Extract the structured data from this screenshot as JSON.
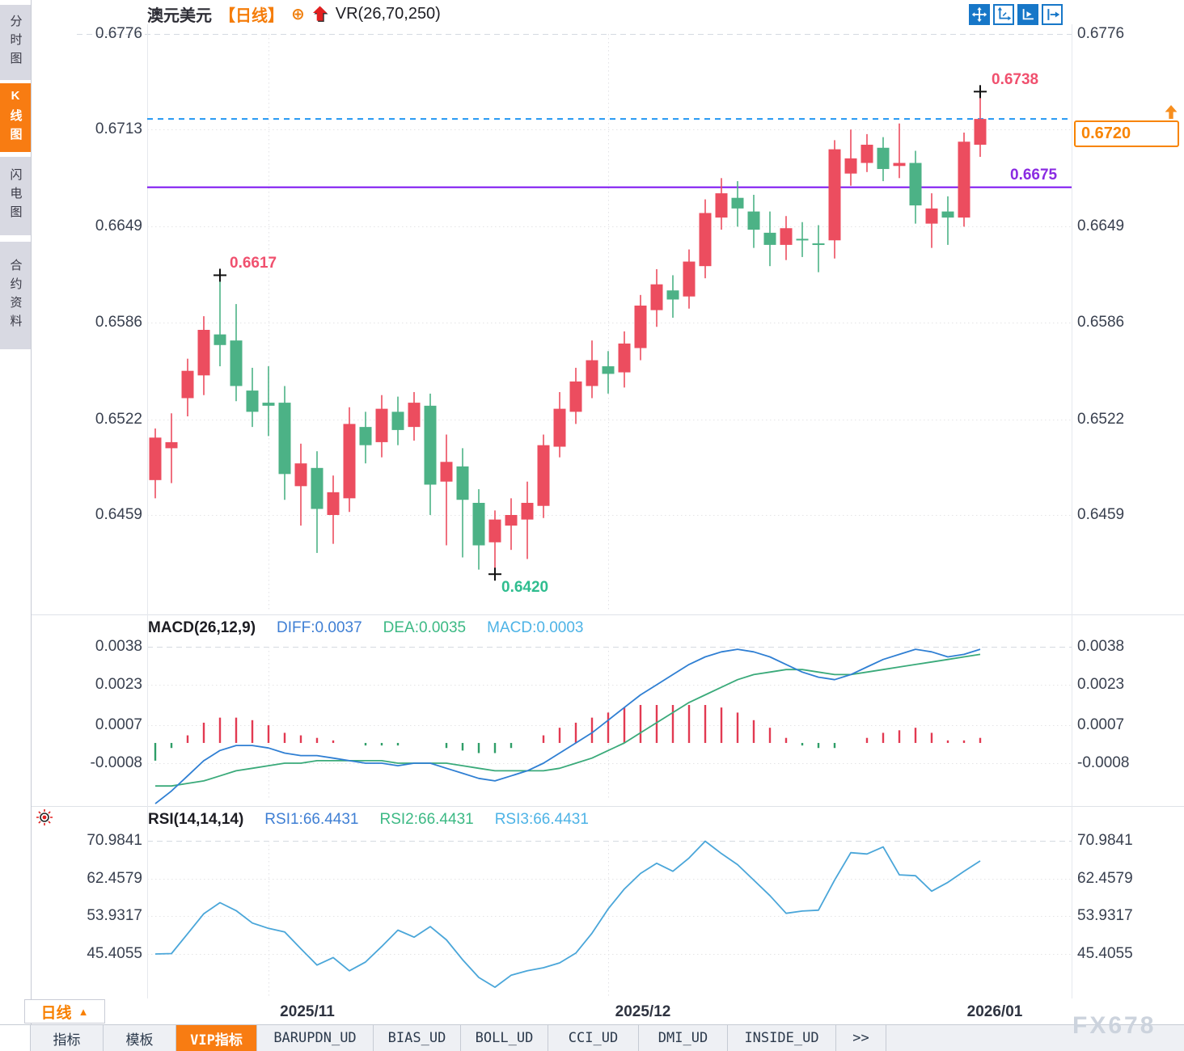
{
  "header": {
    "symbol": "澳元美元",
    "period_tag": "【日线】",
    "plus_icon": "⊕",
    "indicator": "VR(26,70,250)"
  },
  "sidebar": {
    "items": [
      {
        "label": "分时图",
        "active": false
      },
      {
        "label": "K线图",
        "active": true
      },
      {
        "label": "闪电图",
        "active": false
      },
      {
        "label": "合约资料",
        "active": false
      }
    ]
  },
  "toolbar": {
    "icons": [
      "pan",
      "scale-axes",
      "auto-scale",
      "shift-right"
    ]
  },
  "annotations": {
    "swing_high_1": "0.6617",
    "swing_low": "0.6420",
    "swing_high_2": "0.6738",
    "support_line": "0.6675",
    "current_price": "0.6720"
  },
  "colors": {
    "up_candle": "#ec4d5f",
    "down_candle": "#4cb286",
    "accent_orange": "#f87c12",
    "support_purple": "#7a10f0",
    "current_dashed_blue": "#2196f3",
    "diff_line": "#2f7fd3",
    "dea_line": "#3aaa7a",
    "rsi_line": "#4aa6d9",
    "hist_up": "#e23a52",
    "hist_down": "#2f9e68"
  },
  "x_axis": {
    "labels": [
      "2025/11",
      "2025/12",
      "2026/01"
    ]
  },
  "bottom": {
    "period_button": "日线",
    "period_arrow": "▲",
    "tabs": [
      {
        "label": "指标",
        "active": false
      },
      {
        "label": "模板",
        "active": false
      },
      {
        "label": "VIP指标",
        "active": true
      },
      {
        "label": "BARUPDN_UD",
        "active": false
      },
      {
        "label": "BIAS_UD",
        "active": false
      },
      {
        "label": "BOLL_UD",
        "active": false
      },
      {
        "label": "CCI_UD",
        "active": false
      },
      {
        "label": "DMI_UD",
        "active": false
      },
      {
        "label": "INSIDE_UD",
        "active": false
      },
      {
        "label": ">>",
        "active": false
      }
    ],
    "watermark": "FX678"
  },
  "chart_data": [
    {
      "type": "candlestick",
      "title": "澳元美元 日线",
      "y_ticks": [
        "0.6776",
        "0.6713",
        "0.6649",
        "0.6586",
        "0.6522",
        "0.6459"
      ],
      "ylim": [
        0.6459,
        0.6776
      ],
      "support_level": 0.6675,
      "current_level": 0.672,
      "markers": [
        {
          "index": 4,
          "value": 0.6617,
          "label": "0.6617"
        },
        {
          "index": 21,
          "value": 0.642,
          "label": "0.6420"
        },
        {
          "index": 51,
          "value": 0.6738,
          "label": "0.6738"
        }
      ],
      "candles_ohlc": [
        [
          0.6482,
          0.6516,
          0.647,
          0.651
        ],
        [
          0.6503,
          0.6526,
          0.648,
          0.6507
        ],
        [
          0.6536,
          0.6562,
          0.6524,
          0.6554
        ],
        [
          0.6551,
          0.659,
          0.6538,
          0.6581
        ],
        [
          0.6578,
          0.6617,
          0.6557,
          0.6571
        ],
        [
          0.6574,
          0.6598,
          0.6534,
          0.6544
        ],
        [
          0.6541,
          0.6556,
          0.6517,
          0.6527
        ],
        [
          0.6533,
          0.6557,
          0.6511,
          0.6531
        ],
        [
          0.6533,
          0.6544,
          0.6469,
          0.6486
        ],
        [
          0.6478,
          0.6506,
          0.6452,
          0.6493
        ],
        [
          0.649,
          0.6501,
          0.6434,
          0.6463
        ],
        [
          0.6459,
          0.6485,
          0.644,
          0.6474
        ],
        [
          0.647,
          0.653,
          0.6461,
          0.6519
        ],
        [
          0.6517,
          0.6527,
          0.6493,
          0.6505
        ],
        [
          0.6507,
          0.6538,
          0.6497,
          0.6529
        ],
        [
          0.6527,
          0.6537,
          0.6505,
          0.6515
        ],
        [
          0.6517,
          0.654,
          0.6508,
          0.6533
        ],
        [
          0.6531,
          0.6539,
          0.6459,
          0.6479
        ],
        [
          0.6481,
          0.6512,
          0.6439,
          0.6494
        ],
        [
          0.6491,
          0.6503,
          0.6431,
          0.6469
        ],
        [
          0.6467,
          0.6476,
          0.6423,
          0.6439
        ],
        [
          0.6441,
          0.6462,
          0.642,
          0.6456
        ],
        [
          0.6452,
          0.647,
          0.6436,
          0.6459
        ],
        [
          0.6456,
          0.6481,
          0.643,
          0.6467
        ],
        [
          0.6465,
          0.6512,
          0.6457,
          0.6505
        ],
        [
          0.6504,
          0.654,
          0.6497,
          0.6529
        ],
        [
          0.6527,
          0.6556,
          0.6519,
          0.6547
        ],
        [
          0.6544,
          0.6574,
          0.6536,
          0.6561
        ],
        [
          0.6557,
          0.6567,
          0.6539,
          0.6552
        ],
        [
          0.6553,
          0.658,
          0.6543,
          0.6572
        ],
        [
          0.6569,
          0.6604,
          0.6561,
          0.6597
        ],
        [
          0.6594,
          0.6621,
          0.6583,
          0.6611
        ],
        [
          0.6607,
          0.6617,
          0.6589,
          0.6601
        ],
        [
          0.6603,
          0.6634,
          0.6595,
          0.6626
        ],
        [
          0.6623,
          0.6667,
          0.6615,
          0.6658
        ],
        [
          0.6655,
          0.6681,
          0.6647,
          0.6671
        ],
        [
          0.6668,
          0.6679,
          0.6649,
          0.6661
        ],
        [
          0.6659,
          0.667,
          0.6635,
          0.6647
        ],
        [
          0.6645,
          0.6659,
          0.6623,
          0.6637
        ],
        [
          0.6637,
          0.6656,
          0.6627,
          0.6648
        ],
        [
          0.6641,
          0.6652,
          0.6629,
          0.664
        ],
        [
          0.6638,
          0.665,
          0.6619,
          0.6637
        ],
        [
          0.664,
          0.6706,
          0.6628,
          0.67
        ],
        [
          0.6684,
          0.6713,
          0.6676,
          0.6694
        ],
        [
          0.6691,
          0.671,
          0.6685,
          0.6703
        ],
        [
          0.6701,
          0.6708,
          0.6679,
          0.6687
        ],
        [
          0.6689,
          0.6717,
          0.6681,
          0.6691
        ],
        [
          0.6691,
          0.6699,
          0.6651,
          0.6663
        ],
        [
          0.6651,
          0.6671,
          0.6635,
          0.6661
        ],
        [
          0.6659,
          0.6669,
          0.6637,
          0.6655
        ],
        [
          0.6655,
          0.6711,
          0.6649,
          0.6705
        ],
        [
          0.6703,
          0.6738,
          0.6695,
          0.672
        ]
      ]
    },
    {
      "type": "macd",
      "title": "MACD(26,12,9)",
      "readout_diff": "DIFF:0.0037",
      "readout_dea": "DEA:0.0035",
      "readout_macd": "MACD:0.0003",
      "y_ticks": [
        "0.0038",
        "0.0023",
        "0.0007",
        "-0.0008"
      ],
      "diff": [
        -0.0024,
        -0.0019,
        -0.0013,
        -0.0007,
        -0.0003,
        -0.0001,
        -0.0001,
        -0.0002,
        -0.0004,
        -0.0005,
        -0.0005,
        -0.0006,
        -0.0007,
        -0.0008,
        -0.0008,
        -0.0009,
        -0.0008,
        -0.0008,
        -0.001,
        -0.0012,
        -0.0014,
        -0.0015,
        -0.0013,
        -0.0011,
        -0.0008,
        -0.0004,
        0.0,
        0.0004,
        0.0009,
        0.0014,
        0.0019,
        0.0023,
        0.0027,
        0.0031,
        0.0034,
        0.0036,
        0.0037,
        0.0036,
        0.0034,
        0.0031,
        0.0028,
        0.0026,
        0.0025,
        0.0027,
        0.003,
        0.0033,
        0.0035,
        0.0037,
        0.0036,
        0.0034,
        0.0035,
        0.0037
      ],
      "dea": [
        -0.0017,
        -0.0017,
        -0.0016,
        -0.0015,
        -0.0013,
        -0.0011,
        -0.001,
        -0.0009,
        -0.0008,
        -0.0008,
        -0.0007,
        -0.0007,
        -0.0007,
        -0.0007,
        -0.0007,
        -0.0008,
        -0.0008,
        -0.0008,
        -0.0008,
        -0.0009,
        -0.001,
        -0.0011,
        -0.0011,
        -0.0011,
        -0.0011,
        -0.001,
        -0.0008,
        -0.0006,
        -0.0003,
        0.0,
        0.0004,
        0.0008,
        0.0012,
        0.0016,
        0.0019,
        0.0022,
        0.0025,
        0.0027,
        0.0028,
        0.0029,
        0.0029,
        0.0028,
        0.0027,
        0.0027,
        0.0028,
        0.0029,
        0.003,
        0.0031,
        0.0032,
        0.0033,
        0.0034,
        0.0035
      ]
    },
    {
      "type": "line",
      "title": "RSI(14,14,14)",
      "readout_rsi1": "RSI1:66.4431",
      "readout_rsi2": "RSI2:66.4431",
      "readout_rsi3": "RSI3:66.4431",
      "y_ticks": [
        "70.9841",
        "62.4579",
        "53.9317",
        "45.4055"
      ],
      "values": [
        45.4,
        45.5,
        50.0,
        54.5,
        57.0,
        55.2,
        52.4,
        51.2,
        50.4,
        46.6,
        42.9,
        44.6,
        41.6,
        43.6,
        47.1,
        50.8,
        49.2,
        51.6,
        48.6,
        44.1,
        40.1,
        37.9,
        40.6,
        41.6,
        42.3,
        43.4,
        45.6,
        50.1,
        55.6,
        60.1,
        63.6,
        65.9,
        64.1,
        67.1,
        70.9,
        68.1,
        65.6,
        62.1,
        58.6,
        54.6,
        55.1,
        55.3,
        62.1,
        68.3,
        68.0,
        69.6,
        63.3,
        63.1,
        59.6,
        61.6,
        64.1,
        66.4431
      ]
    }
  ]
}
